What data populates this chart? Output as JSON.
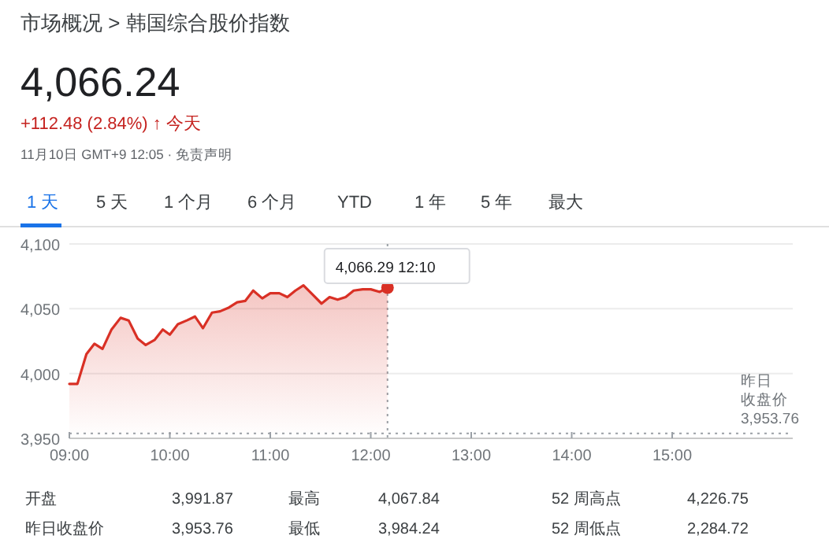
{
  "chart_data": {
    "type": "area",
    "title": "市场概况 > 韩国综合股价指数",
    "subtitle": "4,066.24",
    "annotations": [
      "+112.48 (2.84%) ↑ 今天",
      "11月10日 GMT+9 12:05 · 免责声明",
      "1 天",
      "5 天",
      "1 个月",
      "6 个月",
      "YTD",
      "1 年",
      "5 年",
      "最大",
      {
        "text": "4,066.29  12:10",
        "x": 12.1667,
        "y": 4066.29
      },
      "开盘",
      "3,991.87",
      "最高",
      "4,067.84",
      "52 周高点",
      "4,226.75",
      "昨日收盘价",
      "3,953.76",
      "最低",
      "3,984.24",
      "52 周低点",
      "2,284.72"
    ],
    "x": [
      9.0,
      9.08,
      9.17,
      9.25,
      9.33,
      9.42,
      9.51,
      9.59,
      9.68,
      9.76,
      9.85,
      9.93,
      10.0,
      10.08,
      10.17,
      10.25,
      10.33,
      10.42,
      10.5,
      10.59,
      10.67,
      10.75,
      10.83,
      10.92,
      11.0,
      11.09,
      11.17,
      11.25,
      11.33,
      11.42,
      11.51,
      11.59,
      11.67,
      11.75,
      11.83,
      11.92,
      12.0,
      12.09,
      12.1667
    ],
    "series": [
      {
        "color": "#d93025",
        "values": [
          3992,
          3992,
          4015,
          4023,
          4019,
          4034,
          4043,
          4041,
          4027,
          4022,
          4026,
          4034,
          4030,
          4038,
          4041,
          4044,
          4035,
          4047,
          4048,
          4051,
          4055,
          4056,
          4064,
          4058,
          4062,
          4062,
          4059,
          4064,
          4068,
          4061,
          4054,
          4059,
          4057,
          4059,
          4064,
          4065,
          4065,
          4063,
          4066.29
        ]
      }
    ],
    "xlim": [
      9,
      16.2
    ],
    "xticks": [
      {
        "value": 9,
        "label": "09:00"
      },
      {
        "value": 10,
        "label": "10:00"
      },
      {
        "value": 11,
        "label": "11:00"
      },
      {
        "value": 12,
        "label": "12:00"
      },
      {
        "value": 13,
        "label": "13:00"
      },
      {
        "value": 14,
        "label": "14:00"
      },
      {
        "value": 15,
        "label": "15:00"
      }
    ],
    "ylim": [
      3950,
      4100
    ],
    "yticks": [
      {
        "value": 3950,
        "label": "3,950"
      },
      {
        "value": 4000,
        "label": "4,000"
      },
      {
        "value": 4050,
        "label": "4,050"
      },
      {
        "value": 4100,
        "label": "4,100"
      }
    ],
    "ref_lines": [
      {
        "axis": "y",
        "value": 3953.76,
        "label": "昨日收盘价3,953.76",
        "line_style": "dotted",
        "color": "#9aa0a6"
      },
      {
        "axis": "x",
        "value": 12.1667,
        "line_style": "dotted",
        "color": "#9aa0a6"
      }
    ],
    "grid": "y",
    "marker": "none",
    "line_style": "solid"
  }
}
